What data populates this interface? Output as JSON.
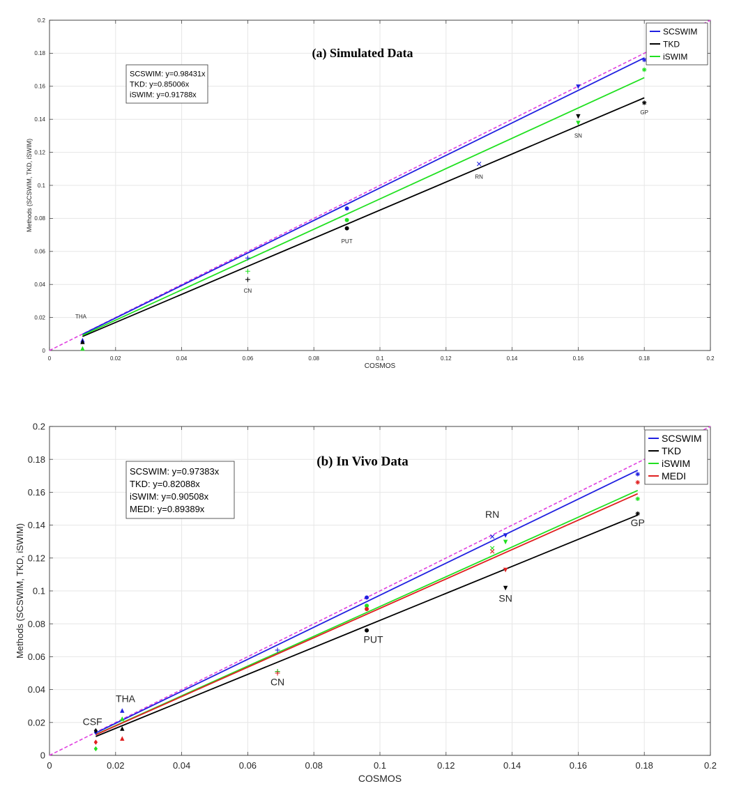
{
  "chart_data": [
    {
      "type": "scatter",
      "title": "(a) Simulated Data",
      "xlabel": "COSMOS",
      "ylabel": "Methods (SCSWIM, TKD, iSWIM)",
      "xlim": [
        0,
        0.2
      ],
      "ylim": [
        0,
        0.2
      ],
      "xticks": [
        "0",
        "0.02",
        "0.04",
        "0.06",
        "0.08",
        "0.1",
        "0.12",
        "0.14",
        "0.16",
        "0.18",
        "0.2"
      ],
      "yticks": [
        "0",
        "0.02",
        "0.04",
        "0.06",
        "0.08",
        "0.1",
        "0.12",
        "0.14",
        "0.16",
        "0.18",
        "0.2"
      ],
      "grid": true,
      "legend_position": "top-right",
      "identity_line": {
        "style": "dashed",
        "color": "#e040e0"
      },
      "fit_text": [
        "SCSWIM: y=0.98431x",
        "TKD: y=0.85006x",
        "iSWIM: y=0.91788x"
      ],
      "series": [
        {
          "name": "SCSWIM",
          "color": "#2020e0",
          "slope": 0.98431,
          "fit_x": [
            0.01,
            0.18
          ],
          "points": [
            {
              "x": 0.01,
              "y": 0.006,
              "m": "tri"
            },
            {
              "x": 0.06,
              "y": 0.056,
              "m": "plus"
            },
            {
              "x": 0.09,
              "y": 0.086,
              "m": "dot"
            },
            {
              "x": 0.13,
              "y": 0.113,
              "m": "x"
            },
            {
              "x": 0.16,
              "y": 0.16,
              "m": "tdown"
            },
            {
              "x": 0.18,
              "y": 0.176,
              "m": "star"
            }
          ]
        },
        {
          "name": "TKD",
          "color": "#000000",
          "slope": 0.85006,
          "fit_x": [
            0.01,
            0.18
          ],
          "points": [
            {
              "x": 0.01,
              "y": 0.005,
              "m": "tri"
            },
            {
              "x": 0.06,
              "y": 0.043,
              "m": "plus"
            },
            {
              "x": 0.09,
              "y": 0.074,
              "m": "dot"
            },
            {
              "x": 0.16,
              "y": 0.142,
              "m": "tdown"
            },
            {
              "x": 0.18,
              "y": 0.15,
              "m": "star"
            }
          ]
        },
        {
          "name": "iSWIM",
          "color": "#20e020",
          "slope": 0.91788,
          "fit_x": [
            0.01,
            0.18
          ],
          "points": [
            {
              "x": 0.01,
              "y": 0.001,
              "m": "tri"
            },
            {
              "x": 0.06,
              "y": 0.048,
              "m": "plus"
            },
            {
              "x": 0.09,
              "y": 0.079,
              "m": "dot"
            },
            {
              "x": 0.16,
              "y": 0.138,
              "m": "tdown"
            },
            {
              "x": 0.18,
              "y": 0.17,
              "m": "star"
            }
          ]
        }
      ],
      "annotations": [
        {
          "text": "THA",
          "x": 0.0095,
          "y": 0.0195
        },
        {
          "text": "CN",
          "x": 0.06,
          "y": 0.035
        },
        {
          "text": "PUT",
          "x": 0.09,
          "y": 0.065
        },
        {
          "text": "RN",
          "x": 0.13,
          "y": 0.104
        },
        {
          "text": "SN",
          "x": 0.16,
          "y": 0.129
        },
        {
          "text": "GP",
          "x": 0.18,
          "y": 0.143
        }
      ]
    },
    {
      "type": "scatter",
      "title": "(b) In Vivo Data",
      "xlabel": "COSMOS",
      "ylabel": "Methods (SCSWIM, TKD, iSWIM)",
      "xlim": [
        0,
        0.2
      ],
      "ylim": [
        0,
        0.2
      ],
      "xticks": [
        "0",
        "0.02",
        "0.04",
        "0.06",
        "0.08",
        "0.1",
        "0.12",
        "0.14",
        "0.16",
        "0.18",
        "0.2"
      ],
      "yticks": [
        "0",
        "0.02",
        "0.04",
        "0.06",
        "0.08",
        "0.1",
        "0.12",
        "0.14",
        "0.16",
        "0.18",
        "0.2"
      ],
      "grid": true,
      "legend_position": "top-right",
      "identity_line": {
        "style": "dashed",
        "color": "#e040e0"
      },
      "fit_text": [
        "SCSWIM: y=0.97383x",
        "TKD: y=0.82088x",
        "iSWIM: y=0.90508x",
        "MEDI: y=0.89389x"
      ],
      "series": [
        {
          "name": "SCSWIM",
          "color": "#2020e0",
          "slope": 0.97383,
          "fit_x": [
            0.014,
            0.178
          ],
          "points": [
            {
              "x": 0.014,
              "y": 0.014,
              "m": "diamond"
            },
            {
              "x": 0.022,
              "y": 0.027,
              "m": "tri"
            },
            {
              "x": 0.069,
              "y": 0.064,
              "m": "plus"
            },
            {
              "x": 0.096,
              "y": 0.096,
              "m": "dot"
            },
            {
              "x": 0.134,
              "y": 0.133,
              "m": "x"
            },
            {
              "x": 0.138,
              "y": 0.134,
              "m": "tdown"
            },
            {
              "x": 0.178,
              "y": 0.171,
              "m": "star"
            }
          ]
        },
        {
          "name": "TKD",
          "color": "#000000",
          "slope": 0.82088,
          "fit_x": [
            0.014,
            0.178
          ],
          "points": [
            {
              "x": 0.014,
              "y": 0.015,
              "m": "diamond"
            },
            {
              "x": 0.022,
              "y": 0.016,
              "m": "tri"
            },
            {
              "x": 0.069,
              "y": 0.051,
              "m": "plus"
            },
            {
              "x": 0.096,
              "y": 0.076,
              "m": "dot"
            },
            {
              "x": 0.138,
              "y": 0.102,
              "m": "tdown"
            },
            {
              "x": 0.178,
              "y": 0.147,
              "m": "star"
            }
          ]
        },
        {
          "name": "iSWIM",
          "color": "#20e020",
          "slope": 0.90508,
          "fit_x": [
            0.014,
            0.178
          ],
          "points": [
            {
              "x": 0.014,
              "y": 0.004,
              "m": "diamond"
            },
            {
              "x": 0.022,
              "y": 0.022,
              "m": "tri"
            },
            {
              "x": 0.069,
              "y": 0.051,
              "m": "plus"
            },
            {
              "x": 0.096,
              "y": 0.091,
              "m": "dot"
            },
            {
              "x": 0.134,
              "y": 0.126,
              "m": "x"
            },
            {
              "x": 0.138,
              "y": 0.13,
              "m": "tdown"
            },
            {
              "x": 0.178,
              "y": 0.156,
              "m": "star"
            }
          ]
        },
        {
          "name": "MEDI",
          "color": "#e02020",
          "slope": 0.89389,
          "fit_x": [
            0.014,
            0.178
          ],
          "points": [
            {
              "x": 0.014,
              "y": 0.008,
              "m": "diamond"
            },
            {
              "x": 0.022,
              "y": 0.01,
              "m": "tri"
            },
            {
              "x": 0.069,
              "y": 0.05,
              "m": "plus"
            },
            {
              "x": 0.096,
              "y": 0.089,
              "m": "dot"
            },
            {
              "x": 0.134,
              "y": 0.124,
              "m": "x"
            },
            {
              "x": 0.138,
              "y": 0.113,
              "m": "tdown"
            },
            {
              "x": 0.178,
              "y": 0.166,
              "m": "star"
            }
          ]
        }
      ],
      "annotations": [
        {
          "text": "CSF",
          "x": 0.013,
          "y": 0.0185
        },
        {
          "text": "THA",
          "x": 0.023,
          "y": 0.0325
        },
        {
          "text": "CN",
          "x": 0.069,
          "y": 0.0425
        },
        {
          "text": "PUT",
          "x": 0.098,
          "y": 0.0685
        },
        {
          "text": "RN",
          "x": 0.134,
          "y": 0.1445
        },
        {
          "text": "SN",
          "x": 0.138,
          "y": 0.0935
        },
        {
          "text": "GP",
          "x": 0.178,
          "y": 0.1395
        }
      ]
    }
  ]
}
